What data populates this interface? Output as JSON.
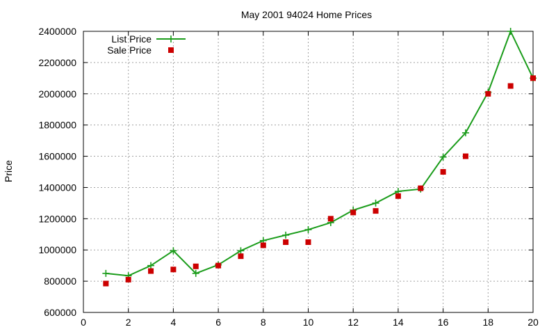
{
  "chart_data": {
    "type": "line",
    "title": "May 2001 94024 Home Prices",
    "xlabel": "",
    "ylabel": "Price",
    "xlim": [
      0,
      20
    ],
    "ylim": [
      600000,
      2400000
    ],
    "xticks": [
      0,
      2,
      4,
      6,
      8,
      10,
      12,
      14,
      16,
      18,
      20
    ],
    "yticks": [
      600000,
      800000,
      1000000,
      1200000,
      1400000,
      1600000,
      1800000,
      2000000,
      2200000,
      2400000
    ],
    "grid": true,
    "legend_position": "top-left",
    "series": [
      {
        "name": "List Price",
        "style": "line+points",
        "color": "#1a9c1a",
        "marker": "plus",
        "x": [
          1,
          2,
          3,
          4,
          5,
          6,
          7,
          8,
          9,
          10,
          11,
          12,
          13,
          14,
          15,
          16,
          17,
          18,
          19,
          20
        ],
        "y": [
          850000,
          835000,
          900000,
          995000,
          850000,
          905000,
          995000,
          1060000,
          1095000,
          1130000,
          1175000,
          1255000,
          1300000,
          1375000,
          1390000,
          1595000,
          1750000,
          2010000,
          2400000,
          2100000
        ]
      },
      {
        "name": "Sale Price",
        "style": "points",
        "color": "#cc0000",
        "marker": "square",
        "x": [
          1,
          2,
          3,
          4,
          5,
          6,
          7,
          8,
          9,
          10,
          11,
          12,
          13,
          14,
          15,
          16,
          17,
          18,
          19,
          20
        ],
        "y": [
          785000,
          810000,
          865000,
          875000,
          895000,
          900000,
          960000,
          1030000,
          1050000,
          1050000,
          1200000,
          1240000,
          1250000,
          1345000,
          1395000,
          1500000,
          1600000,
          2000000,
          2050000,
          2100000
        ]
      }
    ]
  }
}
